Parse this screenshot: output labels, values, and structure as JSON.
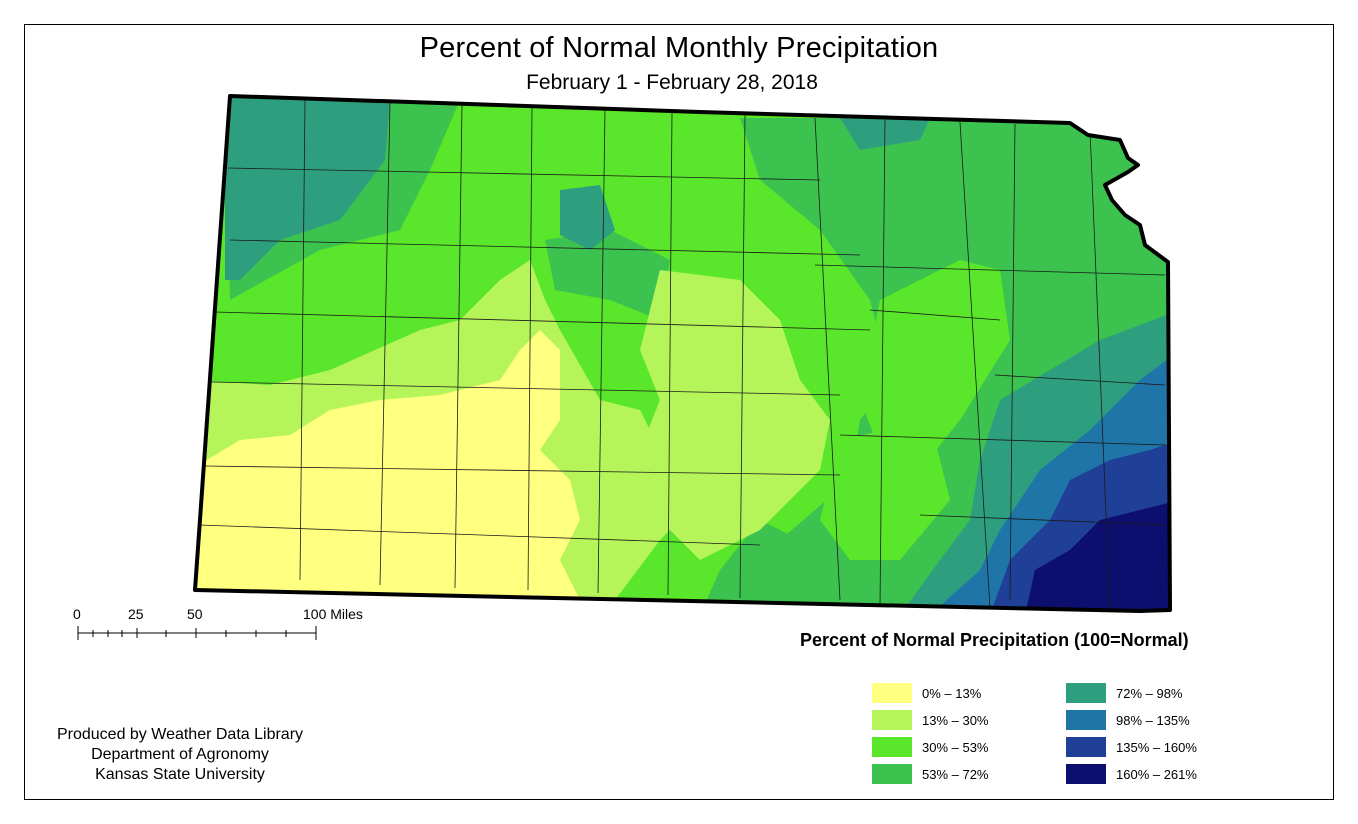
{
  "map": {
    "title": "Percent of Normal Monthly Precipitation",
    "subtitle": "February 1 - February 28, 2018"
  },
  "scale_bar": {
    "ticks": [
      "0",
      "25",
      "50",
      "100 Miles"
    ]
  },
  "legend": {
    "title": "Percent of Normal Precipitation (100=Normal)",
    "classes": [
      {
        "label": "0% – 13%",
        "color": "#FFFF80"
      },
      {
        "label": "13% – 30%",
        "color": "#B5F55A"
      },
      {
        "label": "30% – 53%",
        "color": "#5AE62A"
      },
      {
        "label": "53% – 72%",
        "color": "#3CC24E"
      },
      {
        "label": "72% – 98%",
        "color": "#2E9F7E"
      },
      {
        "label": "98% – 135%",
        "color": "#1F74A8"
      },
      {
        "label": "135% – 160%",
        "color": "#203F96"
      },
      {
        "label": "160% – 261%",
        "color": "#0C0F6E"
      }
    ]
  },
  "credits": {
    "line1": "Produced by Weather Data Library",
    "line2": "Department of Agronomy",
    "line3": "Kansas State University"
  }
}
